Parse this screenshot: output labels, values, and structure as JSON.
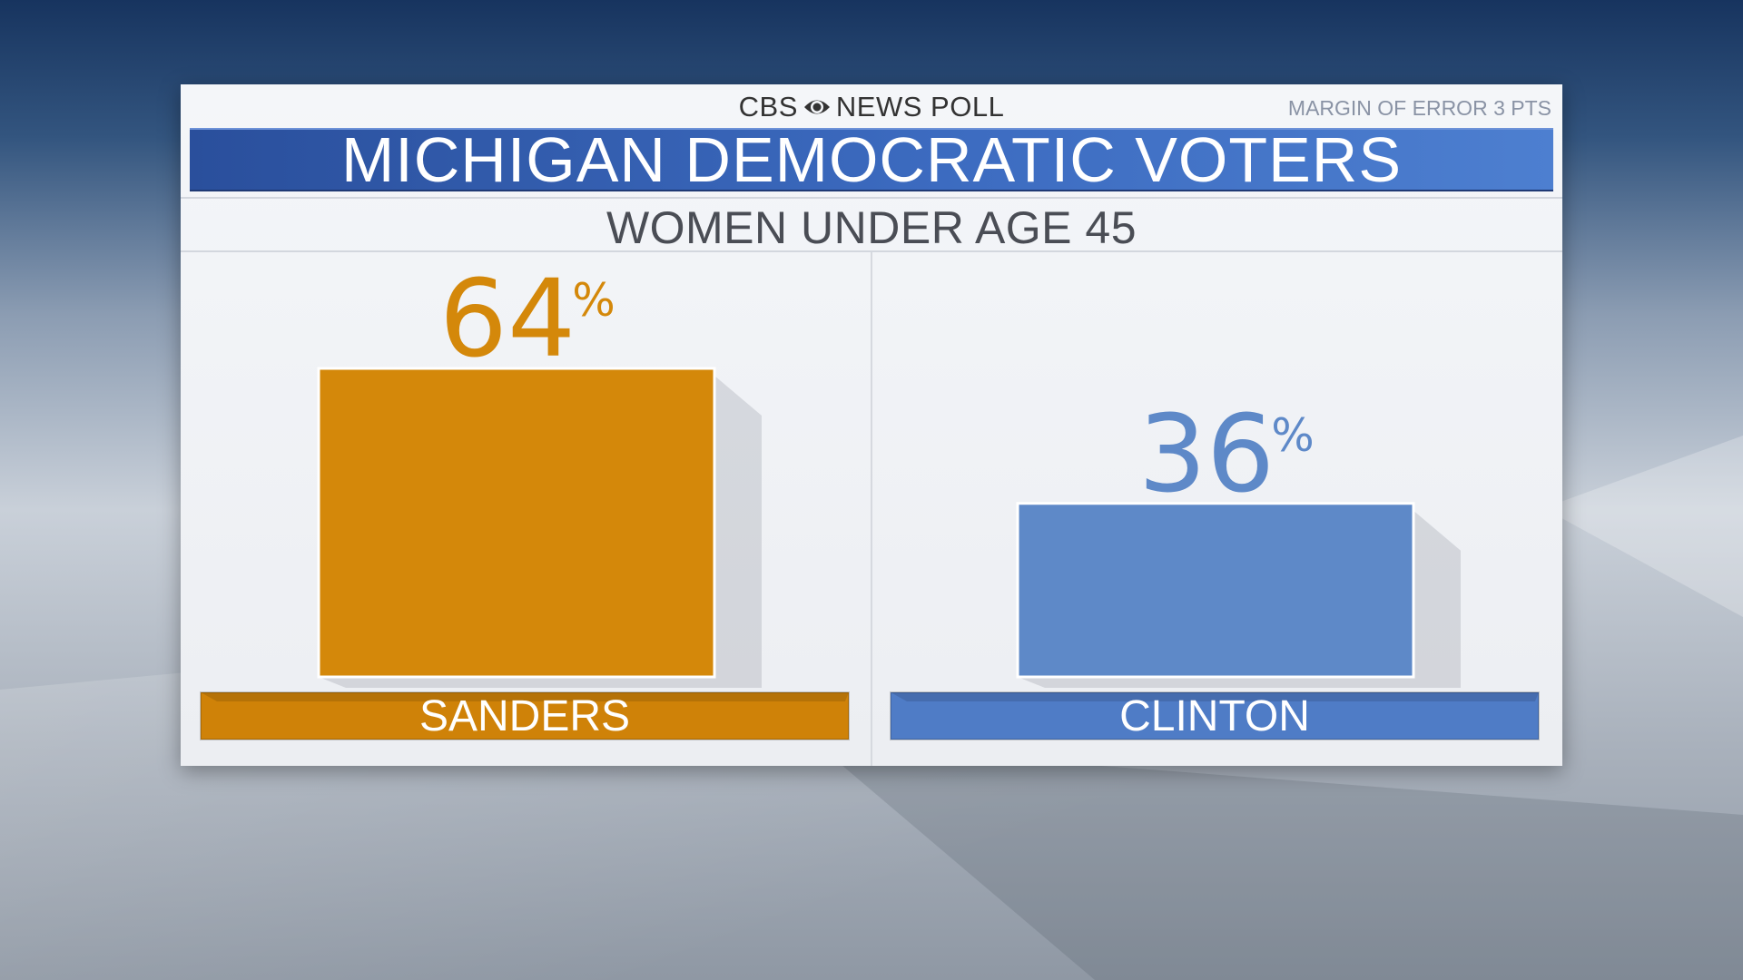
{
  "header": {
    "network_left": "CBS",
    "network_right": "NEWS POLL",
    "margin_of_error": "MARGIN OF ERROR 3 PTS",
    "title": "MICHIGAN DEMOCRATIC VOTERS",
    "subtitle": "WOMEN UNDER AGE 45"
  },
  "chart_data": {
    "type": "bar",
    "title": "MICHIGAN DEMOCRATIC VOTERS",
    "subtitle": "WOMEN UNDER AGE 45",
    "categories": [
      "SANDERS",
      "CLINTON"
    ],
    "values": [
      64,
      36
    ],
    "value_suffix": "%",
    "colors": [
      "#d4880a",
      "#5e89c8"
    ],
    "label_bar_colors": [
      "#cf8208",
      "#4f7cc6"
    ],
    "ylim": [
      0,
      64
    ]
  }
}
